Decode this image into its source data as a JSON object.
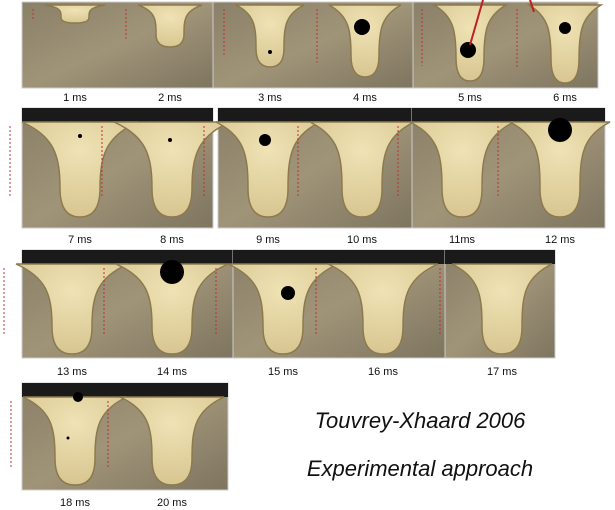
{
  "panels": [
    {
      "label": "1 ms"
    },
    {
      "label": "2 ms"
    },
    {
      "label": "3 ms"
    },
    {
      "label": "4 ms"
    },
    {
      "label": "5 ms"
    },
    {
      "label": "6 ms"
    },
    {
      "label": "7 ms"
    },
    {
      "label": "8 ms"
    },
    {
      "label": "9 ms"
    },
    {
      "label": "10 ms"
    },
    {
      "label": "11ms"
    },
    {
      "label": "12 ms"
    },
    {
      "label": "13 ms"
    },
    {
      "label": "14 ms"
    },
    {
      "label": "15 ms"
    },
    {
      "label": "16 ms"
    },
    {
      "label": "17 ms"
    },
    {
      "label": "18 ms"
    },
    {
      "label": "20 ms"
    }
  ],
  "caption": {
    "author": "Touvrey-Xhaard 2006",
    "subtitle": "Experimental approach"
  }
}
